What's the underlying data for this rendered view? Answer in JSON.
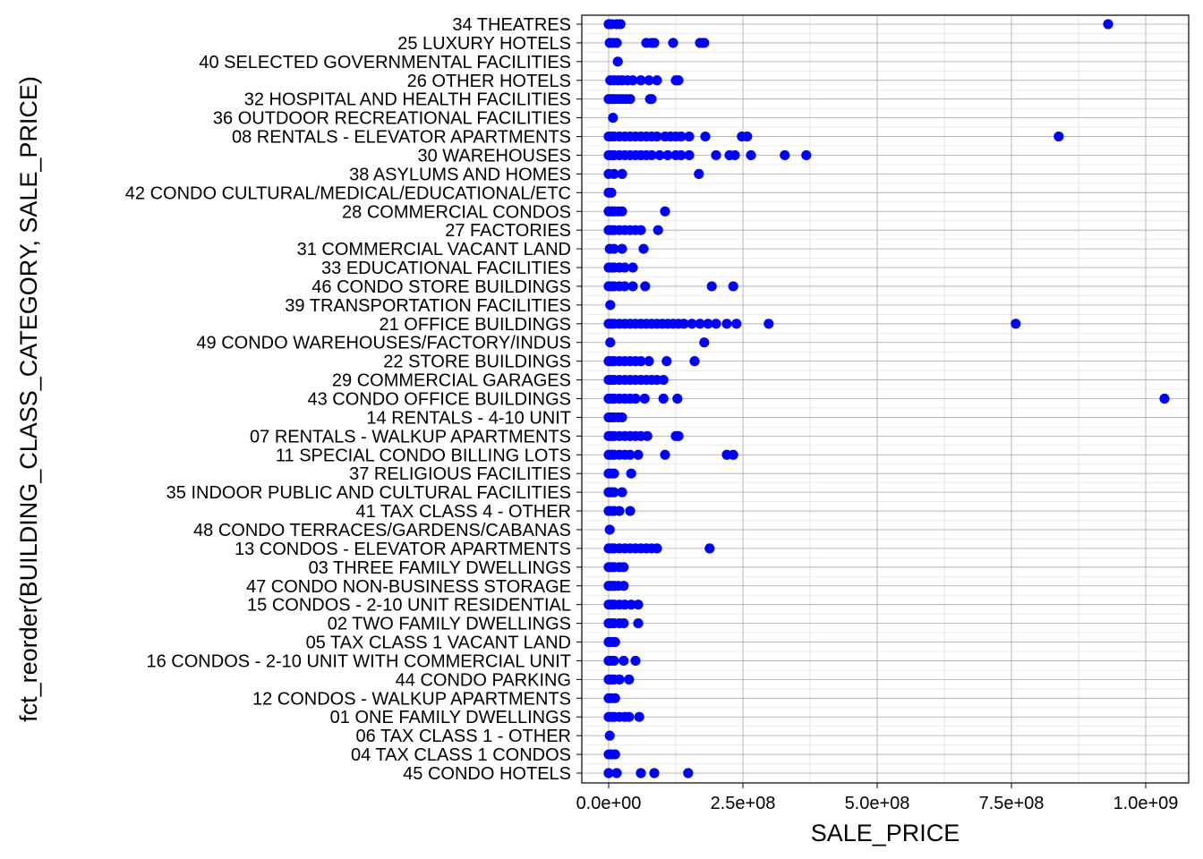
{
  "chart_data": {
    "type": "scatter",
    "title": "",
    "xlabel": "SALE_PRICE",
    "ylabel": "fct_reorder(BUILDING_CLASS_CATEGORY, SALE_PRICE)",
    "xlim": [
      -50000000,
      1080000000
    ],
    "x_ticks": [
      {
        "value": 0,
        "label": "0.0e+00"
      },
      {
        "value": 250000000,
        "label": "2.5e+08"
      },
      {
        "value": 500000000,
        "label": "5.0e+08"
      },
      {
        "value": 750000000,
        "label": "7.5e+08"
      },
      {
        "value": 1000000000,
        "label": "1.0e+09"
      }
    ],
    "grid": true,
    "marker_color": "#0000ff",
    "categories": [
      "34 THEATRES",
      "25 LUXURY HOTELS",
      "40 SELECTED GOVERNMENTAL FACILITIES",
      "26 OTHER HOTELS",
      "32 HOSPITAL AND HEALTH FACILITIES",
      "36 OUTDOOR RECREATIONAL FACILITIES",
      "08 RENTALS - ELEVATOR APARTMENTS",
      "30 WAREHOUSES",
      "38 ASYLUMS AND HOMES",
      "42 CONDO CULTURAL/MEDICAL/EDUCATIONAL/ETC",
      "28 COMMERCIAL CONDOS",
      "27 FACTORIES",
      "31 COMMERCIAL VACANT LAND",
      "33 EDUCATIONAL FACILITIES",
      "46 CONDO STORE BUILDINGS",
      "39 TRANSPORTATION FACILITIES",
      "21 OFFICE BUILDINGS",
      "49 CONDO WAREHOUSES/FACTORY/INDUS",
      "22 STORE BUILDINGS",
      "29 COMMERCIAL GARAGES",
      "43 CONDO OFFICE BUILDINGS",
      "14 RENTALS - 4-10 UNIT",
      "07 RENTALS - WALKUP APARTMENTS",
      "11 SPECIAL CONDO BILLING LOTS",
      "37 RELIGIOUS FACILITIES",
      "35 INDOOR PUBLIC AND CULTURAL FACILITIES",
      "41 TAX CLASS 4 - OTHER",
      "48 CONDO TERRACES/GARDENS/CABANAS",
      "13 CONDOS - ELEVATOR APARTMENTS",
      "03 THREE FAMILY DWELLINGS",
      "47 CONDO NON-BUSINESS STORAGE",
      "15 CONDOS - 2-10 UNIT RESIDENTIAL",
      "02 TWO FAMILY DWELLINGS",
      "05 TAX CLASS 1 VACANT LAND",
      "16 CONDOS - 2-10 UNIT WITH COMMERCIAL UNIT",
      "44 CONDO PARKING",
      "12 CONDOS - WALKUP APARTMENTS",
      "01 ONE FAMILY DWELLINGS",
      "06 TAX CLASS 1 - OTHER",
      "04 TAX CLASS 1 CONDOS",
      "45 CONDO HOTELS"
    ],
    "series": [
      {
        "values": [
          [
            0,
            5000000,
            15000000,
            22000000,
            930000000
          ],
          [
            2000000,
            8000000,
            15000000,
            70000000,
            80000000,
            85000000,
            120000000,
            170000000,
            175000000,
            178000000
          ],
          [
            17000000
          ],
          [
            3000000,
            10000000,
            18000000,
            25000000,
            35000000,
            45000000,
            60000000,
            75000000,
            90000000,
            125000000,
            130000000
          ],
          [
            0,
            5000000,
            10000000,
            18000000,
            25000000,
            32000000,
            40000000,
            77000000,
            80000000
          ],
          [
            8000000
          ],
          [
            0,
            5000000,
            10000000,
            20000000,
            30000000,
            40000000,
            50000000,
            60000000,
            70000000,
            80000000,
            90000000,
            105000000,
            115000000,
            125000000,
            135000000,
            150000000,
            180000000,
            248000000,
            258000000,
            838000000
          ],
          [
            0,
            5000000,
            10000000,
            20000000,
            30000000,
            40000000,
            50000000,
            60000000,
            70000000,
            80000000,
            95000000,
            110000000,
            125000000,
            135000000,
            150000000,
            200000000,
            225000000,
            235000000,
            265000000,
            328000000,
            368000000
          ],
          [
            0,
            10000000,
            25000000,
            168000000
          ],
          [
            0,
            5000000
          ],
          [
            0,
            5000000,
            10000000,
            18000000,
            25000000,
            105000000
          ],
          [
            0,
            5000000,
            10000000,
            20000000,
            30000000,
            40000000,
            50000000,
            60000000,
            92000000
          ],
          [
            2000000,
            10000000,
            25000000,
            65000000
          ],
          [
            0,
            5000000,
            10000000,
            20000000,
            30000000,
            45000000
          ],
          [
            0,
            5000000,
            10000000,
            20000000,
            30000000,
            45000000,
            68000000,
            192000000,
            232000000
          ],
          [
            3000000
          ],
          [
            0,
            5000000,
            10000000,
            20000000,
            30000000,
            40000000,
            50000000,
            60000000,
            70000000,
            80000000,
            90000000,
            100000000,
            110000000,
            120000000,
            130000000,
            140000000,
            155000000,
            170000000,
            185000000,
            200000000,
            220000000,
            238000000,
            298000000,
            758000000
          ],
          [
            3000000,
            178000000
          ],
          [
            0,
            5000000,
            10000000,
            20000000,
            30000000,
            40000000,
            50000000,
            60000000,
            75000000,
            108000000,
            160000000
          ],
          [
            0,
            5000000,
            10000000,
            20000000,
            30000000,
            40000000,
            50000000,
            60000000,
            70000000,
            80000000,
            90000000,
            102000000
          ],
          [
            0,
            5000000,
            10000000,
            20000000,
            30000000,
            40000000,
            50000000,
            67000000,
            102000000,
            128000000,
            1035000000
          ],
          [
            0,
            5000000,
            10000000,
            18000000,
            25000000
          ],
          [
            0,
            5000000,
            10000000,
            20000000,
            30000000,
            40000000,
            50000000,
            60000000,
            72000000,
            125000000,
            130000000
          ],
          [
            0,
            5000000,
            10000000,
            20000000,
            30000000,
            40000000,
            55000000,
            105000000,
            220000000,
            232000000
          ],
          [
            0,
            5000000,
            10000000,
            42000000
          ],
          [
            0,
            5000000,
            10000000,
            25000000
          ],
          [
            0,
            5000000,
            10000000,
            20000000,
            40000000
          ],
          [
            2000000
          ],
          [
            0,
            5000000,
            10000000,
            20000000,
            30000000,
            40000000,
            50000000,
            60000000,
            70000000,
            80000000,
            90000000,
            188000000
          ],
          [
            0,
            5000000,
            10000000,
            20000000,
            28000000
          ],
          [
            0,
            5000000,
            10000000,
            18000000,
            28000000
          ],
          [
            0,
            5000000,
            10000000,
            20000000,
            30000000,
            42000000,
            55000000
          ],
          [
            0,
            5000000,
            10000000,
            20000000,
            28000000,
            55000000
          ],
          [
            0,
            5000000,
            12000000
          ],
          [
            0,
            5000000,
            10000000,
            28000000,
            50000000
          ],
          [
            0,
            5000000,
            10000000,
            20000000,
            38000000
          ],
          [
            0,
            5000000,
            12000000
          ],
          [
            0,
            5000000,
            10000000,
            20000000,
            30000000,
            38000000,
            57000000
          ],
          [
            2000000
          ],
          [
            0,
            5000000,
            12000000
          ],
          [
            0,
            15000000,
            60000000,
            85000000,
            148000000
          ]
        ]
      }
    ]
  }
}
